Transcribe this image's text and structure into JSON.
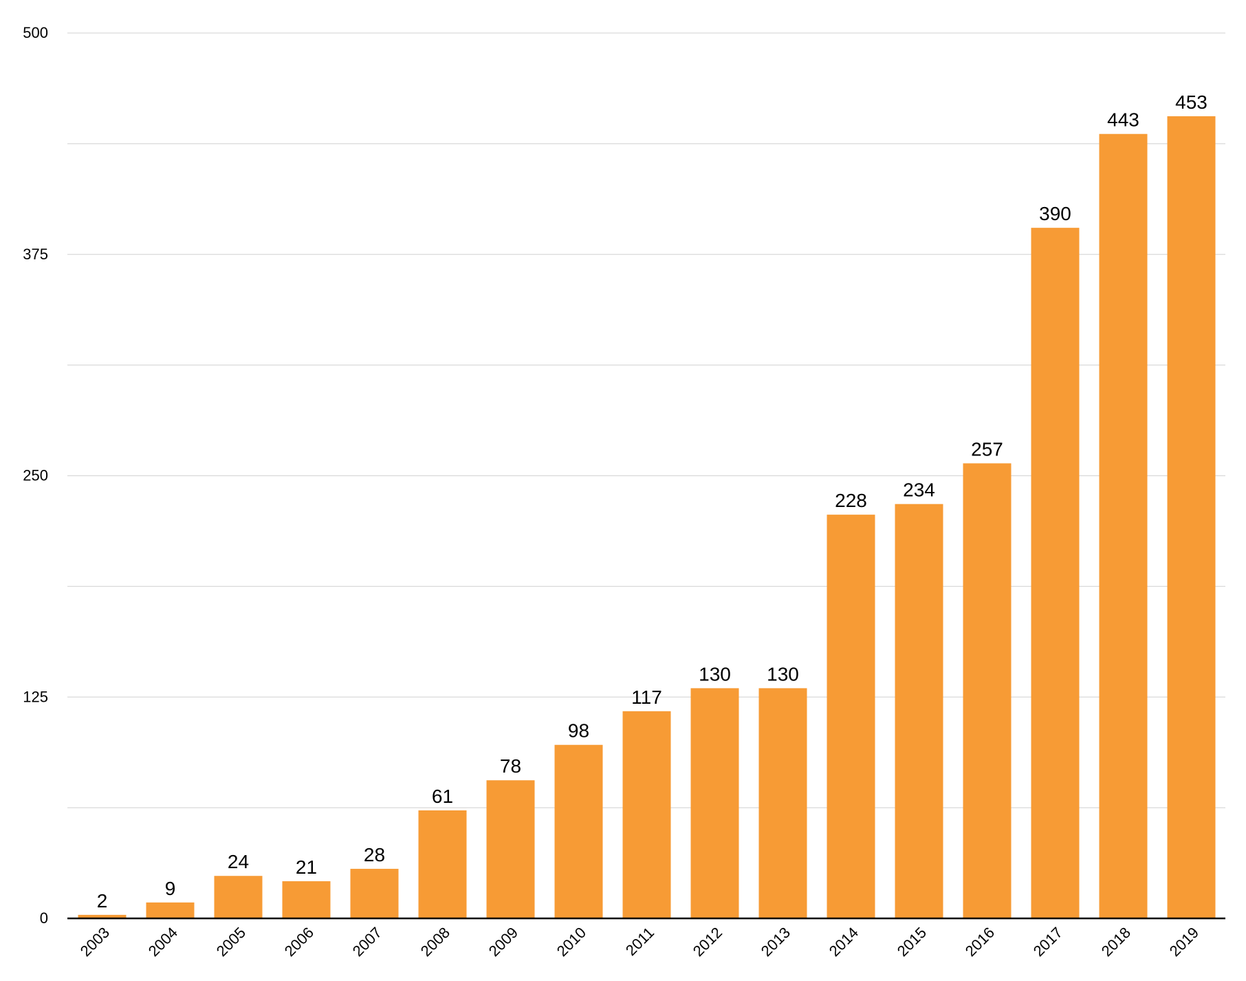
{
  "chart_data": {
    "type": "bar",
    "title": "",
    "xlabel": "",
    "ylabel": "",
    "categories": [
      "2003",
      "2004",
      "2005",
      "2006",
      "2007",
      "2008",
      "2009",
      "2010",
      "2011",
      "2012",
      "2013",
      "2014",
      "2015",
      "2016",
      "2017",
      "2018",
      "2019"
    ],
    "values": [
      2,
      9,
      24,
      21,
      28,
      61,
      78,
      98,
      117,
      130,
      130,
      228,
      234,
      257,
      390,
      443,
      453
    ],
    "ylim": [
      0,
      500
    ],
    "yticks": [
      0,
      125,
      250,
      375,
      500
    ],
    "grid": true,
    "grid_step": 62.5,
    "x_tick_rotation": -45,
    "data_labels": true,
    "bar_color": "#f79b35",
    "legend": "none"
  }
}
